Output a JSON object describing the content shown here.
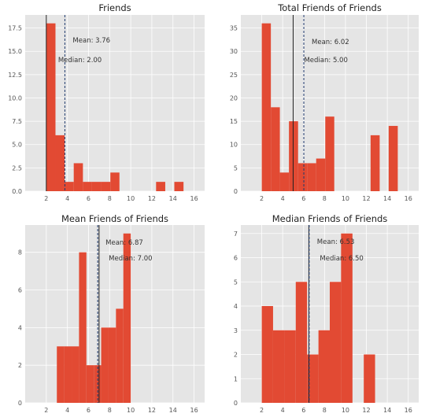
{
  "colors": {
    "bar": "#E24A33",
    "axes_bg": "#E5E5E5",
    "grid": "#FFFFFF",
    "tick_text": "#555555",
    "title_text": "#222222",
    "mean_line": "#1f3b6e",
    "median_line": "#222222"
  },
  "chart_data": [
    {
      "type": "bar",
      "title": "Friends",
      "xlabel": "",
      "ylabel": "",
      "xlim": [
        0,
        17
      ],
      "ylim": [
        0,
        18.9
      ],
      "xticks": [
        2,
        4,
        6,
        8,
        10,
        12,
        14,
        16
      ],
      "yticks": [
        0.0,
        2.5,
        5.0,
        7.5,
        10.0,
        12.5,
        15.0,
        17.5
      ],
      "ytick_labels": [
        "0.0",
        "2.5",
        "5.0",
        "7.5",
        "10.0",
        "12.5",
        "15.0",
        "17.5"
      ],
      "bins": [
        {
          "x0": 2.0,
          "x1": 2.87,
          "value": 18
        },
        {
          "x0": 2.87,
          "x1": 3.73,
          "value": 6
        },
        {
          "x0": 3.73,
          "x1": 4.6,
          "value": 1
        },
        {
          "x0": 4.6,
          "x1": 5.47,
          "value": 3
        },
        {
          "x0": 5.47,
          "x1": 6.33,
          "value": 1
        },
        {
          "x0": 6.33,
          "x1": 7.2,
          "value": 1
        },
        {
          "x0": 7.2,
          "x1": 8.07,
          "value": 1
        },
        {
          "x0": 8.07,
          "x1": 8.93,
          "value": 2
        },
        {
          "x0": 12.4,
          "x1": 13.27,
          "value": 1
        },
        {
          "x0": 14.13,
          "x1": 15.0,
          "value": 1
        }
      ],
      "mean": {
        "value": 3.76,
        "label": "Mean: 3.76"
      },
      "median": {
        "value": 2.0,
        "label": "Median: 2.00"
      }
    },
    {
      "type": "bar",
      "title": "Total Friends of Friends",
      "xlabel": "",
      "ylabel": "",
      "xlim": [
        0,
        17
      ],
      "ylim": [
        0,
        37.8
      ],
      "xticks": [
        2,
        4,
        6,
        8,
        10,
        12,
        14,
        16
      ],
      "yticks": [
        0,
        5,
        10,
        15,
        20,
        25,
        30,
        35
      ],
      "ytick_labels": [
        "0",
        "5",
        "10",
        "15",
        "20",
        "25",
        "30",
        "35"
      ],
      "bins": [
        {
          "x0": 2.0,
          "x1": 2.87,
          "value": 36
        },
        {
          "x0": 2.87,
          "x1": 3.73,
          "value": 18
        },
        {
          "x0": 3.73,
          "x1": 4.6,
          "value": 4
        },
        {
          "x0": 4.6,
          "x1": 5.47,
          "value": 15
        },
        {
          "x0": 5.47,
          "x1": 6.33,
          "value": 6
        },
        {
          "x0": 6.33,
          "x1": 7.2,
          "value": 6
        },
        {
          "x0": 7.2,
          "x1": 8.07,
          "value": 7
        },
        {
          "x0": 8.07,
          "x1": 8.93,
          "value": 16
        },
        {
          "x0": 12.4,
          "x1": 13.27,
          "value": 12
        },
        {
          "x0": 14.13,
          "x1": 15.0,
          "value": 14
        }
      ],
      "mean": {
        "value": 6.02,
        "label": "Mean: 6.02"
      },
      "median": {
        "value": 5.0,
        "label": "Median: 5.00"
      }
    },
    {
      "type": "bar",
      "title": "Mean Friends of Friends",
      "xlabel": "",
      "ylabel": "",
      "xlim": [
        0,
        17
      ],
      "ylim": [
        0,
        9.45
      ],
      "xticks": [
        2,
        4,
        6,
        8,
        10,
        12,
        14,
        16
      ],
      "yticks": [
        0,
        2,
        4,
        6,
        8
      ],
      "ytick_labels": [
        "0",
        "2",
        "4",
        "6",
        "8"
      ],
      "bins": [
        {
          "x0": 3.0,
          "x1": 3.7,
          "value": 3
        },
        {
          "x0": 3.7,
          "x1": 4.4,
          "value": 3
        },
        {
          "x0": 4.4,
          "x1": 5.1,
          "value": 3
        },
        {
          "x0": 5.1,
          "x1": 5.8,
          "value": 8
        },
        {
          "x0": 5.8,
          "x1": 6.5,
          "value": 2
        },
        {
          "x0": 6.5,
          "x1": 7.2,
          "value": 2
        },
        {
          "x0": 7.2,
          "x1": 7.9,
          "value": 4
        },
        {
          "x0": 7.9,
          "x1": 8.6,
          "value": 4
        },
        {
          "x0": 8.6,
          "x1": 9.3,
          "value": 5
        },
        {
          "x0": 9.3,
          "x1": 10.0,
          "value": 9
        }
      ],
      "mean": {
        "value": 6.87,
        "label": "Mean: 6.87"
      },
      "median": {
        "value": 7.0,
        "label": "Median: 7.00"
      }
    },
    {
      "type": "bar",
      "title": "Median Friends of Friends",
      "xlabel": "",
      "ylabel": "",
      "xlim": [
        0,
        17
      ],
      "ylim": [
        0,
        7.35
      ],
      "xticks": [
        2,
        4,
        6,
        8,
        10,
        12,
        14,
        16
      ],
      "yticks": [
        0,
        1,
        2,
        3,
        4,
        5,
        6,
        7
      ],
      "ytick_labels": [
        "0",
        "1",
        "2",
        "3",
        "4",
        "5",
        "6",
        "7"
      ],
      "bins": [
        {
          "x0": 2.0,
          "x1": 3.08,
          "value": 4
        },
        {
          "x0": 3.08,
          "x1": 4.17,
          "value": 3
        },
        {
          "x0": 4.17,
          "x1": 5.25,
          "value": 3
        },
        {
          "x0": 5.25,
          "x1": 6.33,
          "value": 5
        },
        {
          "x0": 6.33,
          "x1": 7.42,
          "value": 2
        },
        {
          "x0": 7.42,
          "x1": 8.5,
          "value": 3
        },
        {
          "x0": 8.5,
          "x1": 9.58,
          "value": 5
        },
        {
          "x0": 9.58,
          "x1": 10.67,
          "value": 7
        },
        {
          "x0": 11.75,
          "x1": 12.83,
          "value": 2
        }
      ],
      "mean": {
        "value": 6.53,
        "label": "Mean: 6.53"
      },
      "median": {
        "value": 6.5,
        "label": "Median: 6.50"
      }
    }
  ]
}
